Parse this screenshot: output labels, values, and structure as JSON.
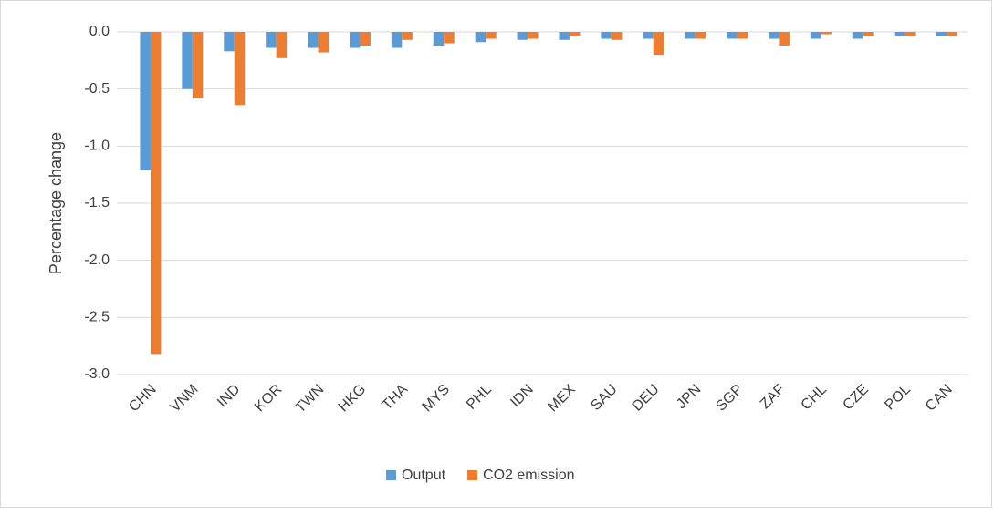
{
  "chart_data": {
    "type": "bar",
    "y_label": "Percentage change",
    "categories": [
      "CHN",
      "VNM",
      "IND",
      "KOR",
      "TWN",
      "HKG",
      "THA",
      "MYS",
      "PHL",
      "IDN",
      "MEX",
      "SAU",
      "DEU",
      "JPN",
      "SGP",
      "ZAF",
      "CHL",
      "CZE",
      "POL",
      "CAN"
    ],
    "series": [
      {
        "name": "Output",
        "color": "#5b9bd5",
        "values": [
          -1.21,
          -0.5,
          -0.17,
          -0.14,
          -0.14,
          -0.14,
          -0.14,
          -0.12,
          -0.09,
          -0.07,
          -0.07,
          -0.06,
          -0.06,
          -0.06,
          -0.06,
          -0.06,
          -0.06,
          -0.06,
          -0.04,
          -0.04
        ]
      },
      {
        "name": "CO2 emission",
        "color": "#ed7d31",
        "values": [
          -2.82,
          -0.58,
          -0.64,
          -0.23,
          -0.18,
          -0.12,
          -0.07,
          -0.1,
          -0.06,
          -0.06,
          -0.04,
          -0.07,
          -0.2,
          -0.06,
          -0.06,
          -0.12,
          -0.02,
          -0.04,
          -0.04,
          -0.04
        ]
      }
    ],
    "ylim": [
      -3.0,
      0.0
    ],
    "yticks": [
      {
        "value": 0,
        "label": "0.0"
      },
      -0.5,
      {
        "value": -1,
        "label": "-1.0"
      },
      -1.5,
      {
        "value": -2,
        "label": "-2.0"
      },
      -2.5,
      {
        "value": -3,
        "label": "-3.0"
      }
    ],
    "grid": true,
    "legend": "bottom"
  }
}
